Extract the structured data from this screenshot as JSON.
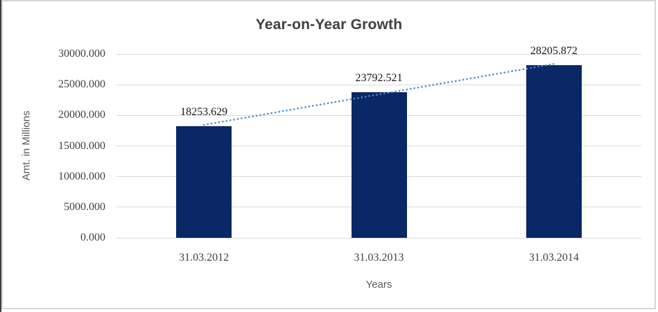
{
  "chart_data": {
    "type": "bar",
    "title": "Year-on-Year Growth",
    "xlabel": "Years",
    "ylabel": "Amt. in Millions",
    "categories": [
      "31.03.2012",
      "31.03.2013",
      "31.03.2014"
    ],
    "values": [
      18253.629,
      23792.521,
      28205.872
    ],
    "data_labels": [
      "18253.629",
      "23792.521",
      "28205.872"
    ],
    "ylim": [
      0,
      30000
    ],
    "y_ticks": [
      {
        "value": 0,
        "label": "0.000"
      },
      {
        "value": 5000,
        "label": "5000.000"
      },
      {
        "value": 10000,
        "label": "10000.000"
      },
      {
        "value": 15000,
        "label": "15000.000"
      },
      {
        "value": 20000,
        "label": "20000.000"
      },
      {
        "value": 25000,
        "label": "25000.000"
      },
      {
        "value": 30000,
        "label": "30000.000"
      }
    ],
    "grid": true,
    "legend_position": "none",
    "trendline": {
      "type": "linear",
      "style": "dotted",
      "color": "#4e8bc9"
    },
    "colors": {
      "bar": "#0a2766",
      "gridline": "#d9d9d9",
      "title_text": "#404040",
      "axis_title_text": "#595959",
      "tick_text": "#404040",
      "data_label_text": "#171717"
    }
  }
}
